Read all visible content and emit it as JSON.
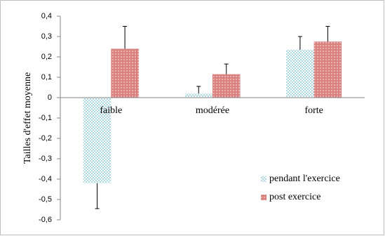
{
  "chart_data": {
    "type": "bar",
    "y_label": "Tailles d'effet moyenne",
    "categories": [
      "faible",
      "modérée",
      "forte"
    ],
    "series": [
      {
        "name": "pendant l'exercice",
        "color": "#4bacc6",
        "values": [
          -0.42,
          0.02,
          0.235
        ],
        "errors": [
          0.125,
          0.035,
          0.065
        ]
      },
      {
        "name": "post exercice",
        "color": "#d9817f",
        "values": [
          0.24,
          0.115,
          0.275
        ],
        "errors": [
          0.11,
          0.05,
          0.075
        ]
      }
    ],
    "ylim": [
      -0.6,
      0.4
    ],
    "yticks": [
      {
        "value": -0.6,
        "label": "-0,6"
      },
      {
        "value": -0.5,
        "label": "-0,5"
      },
      {
        "value": -0.4,
        "label": "-0,4"
      },
      {
        "value": -0.3,
        "label": "-0,3"
      },
      {
        "value": -0.2,
        "label": "-0,2"
      },
      {
        "value": -0.1,
        "label": "-0,1"
      },
      0,
      {
        "value": 0.1,
        "label": "0,1"
      },
      {
        "value": 0.2,
        "label": "0,2"
      },
      {
        "value": 0.3,
        "label": "0,3"
      },
      {
        "value": 0.4,
        "label": "0,4"
      }
    ],
    "legend": "bottom-right"
  }
}
